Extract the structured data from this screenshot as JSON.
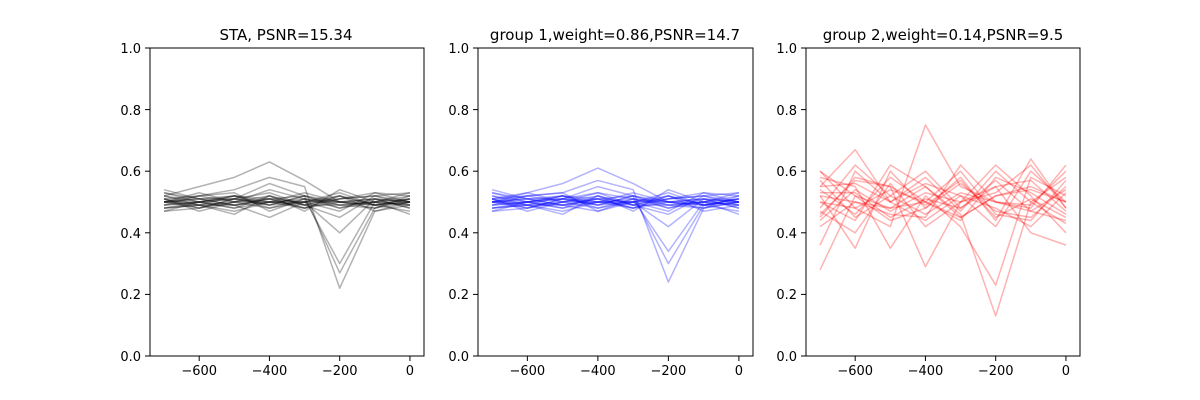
{
  "chart_data": [
    {
      "type": "line",
      "title": "STA, PSNR=15.34",
      "xlabel": "",
      "ylabel": "",
      "xlim": [
        -740,
        40
      ],
      "ylim": [
        0,
        1
      ],
      "xticks": [
        -600,
        -400,
        -200,
        0
      ],
      "xtick_labels": [
        "−600",
        "−400",
        "−200",
        "0"
      ],
      "yticks": [
        0,
        0.2,
        0.4,
        0.6,
        0.8,
        1
      ],
      "ytick_labels": [
        "0.0",
        "0.2",
        "0.4",
        "0.6",
        "0.8",
        "1.0"
      ],
      "color": "#000000",
      "opacity": 0.3,
      "x": [
        -700,
        -600,
        -500,
        -400,
        -300,
        -200,
        -100,
        0
      ],
      "series": [
        {
          "values": [
            0.52,
            0.55,
            0.58,
            0.63,
            0.57,
            0.5,
            0.49,
            0.5
          ]
        },
        {
          "values": [
            0.5,
            0.52,
            0.54,
            0.58,
            0.55,
            0.22,
            0.47,
            0.5
          ]
        },
        {
          "values": [
            0.49,
            0.5,
            0.51,
            0.56,
            0.52,
            0.27,
            0.48,
            0.51
          ]
        },
        {
          "values": [
            0.51,
            0.49,
            0.5,
            0.54,
            0.51,
            0.3,
            0.5,
            0.49
          ]
        },
        {
          "values": [
            0.5,
            0.51,
            0.49,
            0.45,
            0.5,
            0.4,
            0.51,
            0.5
          ]
        },
        {
          "values": [
            0.48,
            0.49,
            0.47,
            0.5,
            0.49,
            0.45,
            0.52,
            0.53
          ]
        },
        {
          "values": [
            0.53,
            0.5,
            0.52,
            0.48,
            0.5,
            0.53,
            0.49,
            0.47
          ]
        },
        {
          "values": [
            0.5,
            0.53,
            0.5,
            0.51,
            0.48,
            0.51,
            0.53,
            0.5
          ]
        },
        {
          "values": [
            0.47,
            0.48,
            0.51,
            0.49,
            0.52,
            0.49,
            0.5,
            0.52
          ]
        },
        {
          "values": [
            0.52,
            0.5,
            0.48,
            0.52,
            0.49,
            0.52,
            0.47,
            0.49
          ]
        },
        {
          "values": [
            0.49,
            0.52,
            0.53,
            0.47,
            0.51,
            0.48,
            0.51,
            0.48
          ]
        },
        {
          "values": [
            0.51,
            0.47,
            0.5,
            0.5,
            0.53,
            0.5,
            0.49,
            0.51
          ]
        },
        {
          "values": [
            0.5,
            0.49,
            0.46,
            0.52,
            0.47,
            0.54,
            0.5,
            0.46
          ]
        },
        {
          "values": [
            0.54,
            0.51,
            0.52,
            0.49,
            0.5,
            0.47,
            0.53,
            0.52
          ]
        },
        {
          "values": [
            0.48,
            0.5,
            0.49,
            0.51,
            0.52,
            0.5,
            0.48,
            0.5
          ]
        },
        {
          "values": [
            0.5,
            0.48,
            0.51,
            0.53,
            0.49,
            0.51,
            0.52,
            0.49
          ]
        },
        {
          "values": [
            0.51,
            0.52,
            0.5,
            0.48,
            0.51,
            0.49,
            0.5,
            0.53
          ]
        },
        {
          "values": [
            0.49,
            0.5,
            0.52,
            0.5,
            0.48,
            0.52,
            0.49,
            0.5
          ]
        },
        {
          "values": [
            0.52,
            0.49,
            0.49,
            0.51,
            0.5,
            0.5,
            0.51,
            0.48
          ]
        },
        {
          "values": [
            0.5,
            0.51,
            0.51,
            0.49,
            0.52,
            0.48,
            0.5,
            0.51
          ]
        },
        {
          "values": [
            0.47,
            0.5,
            0.48,
            0.5,
            0.5,
            0.51,
            0.52,
            0.5
          ]
        },
        {
          "values": [
            0.51,
            0.48,
            0.5,
            0.52,
            0.49,
            0.49,
            0.48,
            0.52
          ]
        },
        {
          "values": [
            0.5,
            0.5,
            0.51,
            0.5,
            0.51,
            0.5,
            0.5,
            0.49
          ]
        },
        {
          "values": [
            0.53,
            0.51,
            0.49,
            0.5,
            0.5,
            0.52,
            0.49,
            0.51
          ]
        },
        {
          "values": [
            0.48,
            0.49,
            0.52,
            0.51,
            0.48,
            0.5,
            0.51,
            0.5
          ]
        }
      ]
    },
    {
      "type": "line",
      "title": "group 1,weight=0.86,PSNR=14.7",
      "xlabel": "",
      "ylabel": "",
      "xlim": [
        -740,
        40
      ],
      "ylim": [
        0,
        1
      ],
      "xticks": [
        -600,
        -400,
        -200,
        0
      ],
      "xtick_labels": [
        "−600",
        "−400",
        "−200",
        "0"
      ],
      "yticks": [
        0,
        0.2,
        0.4,
        0.6,
        0.8,
        1
      ],
      "ytick_labels": [
        "0.0",
        "0.2",
        "0.4",
        "0.6",
        "0.8",
        "1.0"
      ],
      "color": "#0000ff",
      "opacity": 0.3,
      "x": [
        -700,
        -600,
        -500,
        -400,
        -300,
        -200,
        -100,
        0
      ],
      "series": [
        {
          "values": [
            0.51,
            0.53,
            0.56,
            0.61,
            0.56,
            0.5,
            0.49,
            0.5
          ]
        },
        {
          "values": [
            0.5,
            0.52,
            0.53,
            0.57,
            0.54,
            0.24,
            0.48,
            0.5
          ]
        },
        {
          "values": [
            0.49,
            0.5,
            0.51,
            0.55,
            0.52,
            0.3,
            0.49,
            0.51
          ]
        },
        {
          "values": [
            0.51,
            0.49,
            0.5,
            0.53,
            0.51,
            0.34,
            0.5,
            0.49
          ]
        },
        {
          "values": [
            0.5,
            0.51,
            0.49,
            0.47,
            0.5,
            0.42,
            0.51,
            0.5
          ]
        },
        {
          "values": [
            0.48,
            0.49,
            0.47,
            0.5,
            0.49,
            0.46,
            0.52,
            0.53
          ]
        },
        {
          "values": [
            0.53,
            0.5,
            0.52,
            0.48,
            0.5,
            0.53,
            0.49,
            0.47
          ]
        },
        {
          "values": [
            0.5,
            0.53,
            0.5,
            0.51,
            0.48,
            0.51,
            0.53,
            0.5
          ]
        },
        {
          "values": [
            0.47,
            0.48,
            0.51,
            0.49,
            0.52,
            0.49,
            0.5,
            0.52
          ]
        },
        {
          "values": [
            0.52,
            0.5,
            0.48,
            0.52,
            0.49,
            0.52,
            0.47,
            0.49
          ]
        },
        {
          "values": [
            0.49,
            0.52,
            0.53,
            0.47,
            0.51,
            0.48,
            0.51,
            0.48
          ]
        },
        {
          "values": [
            0.51,
            0.47,
            0.5,
            0.5,
            0.53,
            0.5,
            0.49,
            0.51
          ]
        },
        {
          "values": [
            0.5,
            0.49,
            0.46,
            0.52,
            0.47,
            0.54,
            0.5,
            0.46
          ]
        },
        {
          "values": [
            0.54,
            0.51,
            0.52,
            0.49,
            0.5,
            0.47,
            0.53,
            0.52
          ]
        },
        {
          "values": [
            0.48,
            0.5,
            0.49,
            0.51,
            0.52,
            0.5,
            0.48,
            0.5
          ]
        },
        {
          "values": [
            0.5,
            0.48,
            0.51,
            0.53,
            0.49,
            0.51,
            0.52,
            0.49
          ]
        },
        {
          "values": [
            0.51,
            0.52,
            0.5,
            0.48,
            0.51,
            0.49,
            0.5,
            0.53
          ]
        },
        {
          "values": [
            0.49,
            0.5,
            0.52,
            0.5,
            0.48,
            0.52,
            0.49,
            0.5
          ]
        },
        {
          "values": [
            0.52,
            0.49,
            0.49,
            0.51,
            0.5,
            0.5,
            0.51,
            0.48
          ]
        },
        {
          "values": [
            0.5,
            0.51,
            0.51,
            0.49,
            0.52,
            0.48,
            0.5,
            0.51
          ]
        },
        {
          "values": [
            0.47,
            0.5,
            0.48,
            0.5,
            0.5,
            0.51,
            0.52,
            0.5
          ]
        },
        {
          "values": [
            0.51,
            0.48,
            0.5,
            0.52,
            0.49,
            0.49,
            0.48,
            0.52
          ]
        },
        {
          "values": [
            0.5,
            0.5,
            0.51,
            0.5,
            0.51,
            0.5,
            0.5,
            0.49
          ]
        },
        {
          "values": [
            0.53,
            0.51,
            0.49,
            0.5,
            0.5,
            0.52,
            0.49,
            0.51
          ]
        },
        {
          "values": [
            0.48,
            0.49,
            0.52,
            0.51,
            0.48,
            0.5,
            0.51,
            0.5
          ]
        }
      ]
    },
    {
      "type": "line",
      "title": "group 2,weight=0.14,PSNR=9.5",
      "xlabel": "",
      "ylabel": "",
      "xlim": [
        -740,
        40
      ],
      "ylim": [
        0,
        1
      ],
      "xticks": [
        -600,
        -400,
        -200,
        0
      ],
      "xtick_labels": [
        "−600",
        "−400",
        "−200",
        "0"
      ],
      "yticks": [
        0,
        0.2,
        0.4,
        0.6,
        0.8,
        1
      ],
      "ytick_labels": [
        "0.0",
        "0.2",
        "0.4",
        "0.6",
        "0.8",
        "1.0"
      ],
      "color": "#ff0000",
      "opacity": 0.3,
      "x": [
        -700,
        -600,
        -500,
        -400,
        -300,
        -200,
        -100,
        0
      ],
      "series": [
        {
          "values": [
            0.28,
            0.52,
            0.48,
            0.5,
            0.45,
            0.52,
            0.55,
            0.5
          ]
        },
        {
          "values": [
            0.55,
            0.67,
            0.5,
            0.44,
            0.52,
            0.48,
            0.42,
            0.53
          ]
        },
        {
          "values": [
            0.5,
            0.44,
            0.62,
            0.55,
            0.46,
            0.13,
            0.5,
            0.58
          ]
        },
        {
          "values": [
            0.6,
            0.48,
            0.42,
            0.75,
            0.55,
            0.5,
            0.47,
            0.44
          ]
        },
        {
          "values": [
            0.45,
            0.58,
            0.55,
            0.29,
            0.5,
            0.62,
            0.52,
            0.4
          ]
        },
        {
          "values": [
            0.52,
            0.35,
            0.6,
            0.48,
            0.58,
            0.44,
            0.64,
            0.48
          ]
        },
        {
          "values": [
            0.58,
            0.55,
            0.35,
            0.52,
            0.42,
            0.23,
            0.58,
            0.52
          ]
        },
        {
          "values": [
            0.48,
            0.62,
            0.52,
            0.6,
            0.48,
            0.55,
            0.4,
            0.36
          ]
        },
        {
          "values": [
            0.42,
            0.5,
            0.46,
            0.45,
            0.62,
            0.5,
            0.48,
            0.62
          ]
        },
        {
          "values": [
            0.54,
            0.46,
            0.58,
            0.5,
            0.44,
            0.58,
            0.53,
            0.46
          ]
        },
        {
          "values": [
            0.36,
            0.6,
            0.5,
            0.56,
            0.52,
            0.42,
            0.6,
            0.5
          ]
        },
        {
          "values": [
            0.6,
            0.52,
            0.44,
            0.48,
            0.56,
            0.47,
            0.45,
            0.55
          ]
        },
        {
          "values": [
            0.47,
            0.4,
            0.56,
            0.42,
            0.5,
            0.53,
            0.62,
            0.48
          ]
        },
        {
          "values": [
            0.55,
            0.56,
            0.5,
            0.58,
            0.47,
            0.6,
            0.5,
            0.43
          ]
        },
        {
          "values": [
            0.5,
            0.48,
            0.54,
            0.5,
            0.6,
            0.46,
            0.44,
            0.57
          ]
        },
        {
          "values": [
            0.44,
            0.54,
            0.47,
            0.53,
            0.5,
            0.55,
            0.57,
            0.47
          ]
        },
        {
          "values": [
            0.57,
            0.45,
            0.52,
            0.46,
            0.53,
            0.5,
            0.49,
            0.6
          ]
        },
        {
          "values": [
            0.52,
            0.5,
            0.48,
            0.55,
            0.45,
            0.52,
            0.54,
            0.5
          ]
        },
        {
          "values": [
            0.46,
            0.57,
            0.55,
            0.49,
            0.57,
            0.45,
            0.51,
            0.45
          ]
        },
        {
          "values": [
            0.53,
            0.53,
            0.45,
            0.51,
            0.48,
            0.57,
            0.47,
            0.54
          ]
        }
      ]
    }
  ]
}
